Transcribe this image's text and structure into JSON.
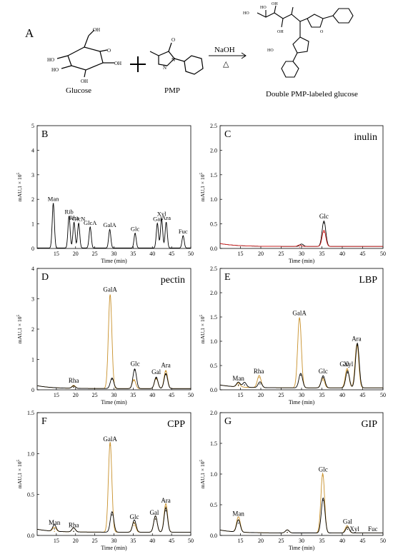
{
  "reaction": {
    "panel_letter": "A",
    "reactant1_label": "Glucose",
    "reactant2_label": "PMP",
    "condition": "NaOH",
    "condition_symbol": "△",
    "product_label": "Double PMP-labeled glucose",
    "oh_label": "OH",
    "ho_label": "HO",
    "o_label": "O",
    "n_label": "N"
  },
  "colors": {
    "axis": "#000000",
    "standard": "#000000",
    "series_black": "#000000",
    "series_red": "#d42020",
    "series_orange": "#c8902a"
  },
  "chart_data": [
    {
      "id": "B",
      "type": "line",
      "title": "",
      "letter": "B",
      "xlabel": "Time (min)",
      "ylabel": "mAU,1 × 10",
      "ylabel_exp": "5",
      "xlim": [
        10,
        50
      ],
      "ylim": [
        0,
        5
      ],
      "xticks": [
        "15",
        "20",
        "25",
        "30",
        "35",
        "40",
        "45",
        "50"
      ],
      "yticks": [
        "0",
        "1",
        "2",
        "3",
        "4",
        "5"
      ],
      "peaks": [
        {
          "label": "Man",
          "x": 14.2,
          "y": 1.82
        },
        {
          "label": "Rib",
          "x": 18.3,
          "y": 1.3
        },
        {
          "label": "Rha",
          "x": 19.6,
          "y": 1.05
        },
        {
          "label": "GlcN",
          "x": 20.8,
          "y": 1.0
        },
        {
          "label": "GlcA",
          "x": 23.8,
          "y": 0.85
        },
        {
          "label": "GalA",
          "x": 28.9,
          "y": 0.75
        },
        {
          "label": "Glc",
          "x": 35.5,
          "y": 0.6
        },
        {
          "label": "Gal",
          "x": 41.3,
          "y": 1.0
        },
        {
          "label": "Xyl",
          "x": 42.4,
          "y": 1.2
        },
        {
          "label": "Ara",
          "x": 43.6,
          "y": 1.05
        },
        {
          "label": "Fuc",
          "x": 48.0,
          "y": 0.5
        }
      ]
    },
    {
      "id": "C",
      "type": "line",
      "title": "inulin",
      "letter": "C",
      "xlabel": "Time (min)",
      "ylabel": "mAU,1 × 10",
      "ylabel_exp": "5",
      "xlim": [
        10,
        50
      ],
      "ylim": [
        0,
        2.5
      ],
      "xticks": [
        "15",
        "20",
        "25",
        "30",
        "35",
        "40",
        "45",
        "50"
      ],
      "yticks": [
        "0.0",
        "0.5",
        "1.0",
        "1.5",
        "2.0",
        "2.5"
      ],
      "annotations": [
        "Glc"
      ],
      "series": [
        {
          "color": "series_black",
          "peaks": [
            {
              "x": 35.5,
              "y": 0.52
            },
            {
              "x": 30.0,
              "y": 0.05
            }
          ]
        },
        {
          "color": "series_red",
          "peaks": [
            {
              "x": 35.5,
              "y": 0.33
            },
            {
              "x": 29.5,
              "y": 0.03
            }
          ]
        }
      ]
    },
    {
      "id": "D",
      "type": "line",
      "title": "pectin",
      "letter": "D",
      "xlabel": "Time (min)",
      "ylabel": "mAU,1 × 10",
      "ylabel_exp": "5",
      "xlim": [
        10,
        50
      ],
      "ylim": [
        0,
        4
      ],
      "xticks": [
        "15",
        "20",
        "25",
        "30",
        "35",
        "40",
        "45",
        "50"
      ],
      "yticks": [
        "0",
        "1",
        "2",
        "3",
        "4"
      ],
      "annotations": [
        {
          "label": "Rha",
          "x": 19.5
        },
        {
          "label": "GalA",
          "x": 29.0
        },
        {
          "label": "Glc",
          "x": 35.5
        },
        {
          "label": "Gal",
          "x": 41.0
        },
        {
          "label": "Ara",
          "x": 43.5
        }
      ],
      "series": [
        {
          "color": "series_orange",
          "peaks": [
            {
              "x": 29.0,
              "y": 3.1
            },
            {
              "x": 35.2,
              "y": 0.3
            },
            {
              "x": 41.0,
              "y": 0.35
            },
            {
              "x": 43.5,
              "y": 0.6
            },
            {
              "x": 19.5,
              "y": 0.1
            }
          ]
        },
        {
          "color": "series_black",
          "peaks": [
            {
              "x": 29.5,
              "y": 0.35
            },
            {
              "x": 35.4,
              "y": 0.65
            },
            {
              "x": 41.0,
              "y": 0.38
            },
            {
              "x": 43.5,
              "y": 0.5
            },
            {
              "x": 19.5,
              "y": 0.08
            }
          ]
        }
      ]
    },
    {
      "id": "E",
      "type": "line",
      "title": "LBP",
      "letter": "E",
      "xlabel": "Time (min)",
      "ylabel": "mAU,1 × 10",
      "ylabel_exp": "5",
      "xlim": [
        10,
        50
      ],
      "ylim": [
        0,
        2.5
      ],
      "xticks": [
        "15",
        "20",
        "25",
        "30",
        "35",
        "40",
        "45",
        "50"
      ],
      "yticks": [
        "0.0",
        "0.5",
        "1.0",
        "1.5",
        "2.0",
        "2.5"
      ],
      "annotations": [
        {
          "label": "Man",
          "x": 14.5
        },
        {
          "label": "Rha",
          "x": 19.5
        },
        {
          "label": "GalA",
          "x": 29.5
        },
        {
          "label": "Glc",
          "x": 35.3
        },
        {
          "label": "Gal",
          "x": 40.5
        },
        {
          "label": "Xyl",
          "x": 41.5
        },
        {
          "label": "Ara",
          "x": 43.5
        }
      ],
      "series": [
        {
          "color": "series_orange",
          "peaks": [
            {
              "x": 29.5,
              "y": 1.45
            },
            {
              "x": 19.6,
              "y": 0.25
            },
            {
              "x": 14.5,
              "y": 0.08
            },
            {
              "x": 35.2,
              "y": 0.2
            },
            {
              "x": 41.2,
              "y": 0.4
            },
            {
              "x": 43.6,
              "y": 0.9
            }
          ]
        },
        {
          "color": "series_black",
          "peaks": [
            {
              "x": 29.8,
              "y": 0.3
            },
            {
              "x": 19.8,
              "y": 0.12
            },
            {
              "x": 14.5,
              "y": 0.1
            },
            {
              "x": 16.0,
              "y": 0.1
            },
            {
              "x": 35.3,
              "y": 0.25
            },
            {
              "x": 41.3,
              "y": 0.35
            },
            {
              "x": 43.7,
              "y": 0.92
            }
          ]
        }
      ]
    },
    {
      "id": "F",
      "type": "line",
      "title": "CPP",
      "letter": "F",
      "xlabel": "Time (min)",
      "ylabel": "mAU,1 × 10",
      "ylabel_exp": "5",
      "xlim": [
        10,
        50
      ],
      "ylim": [
        0,
        1.5
      ],
      "xticks": [
        "15",
        "20",
        "25",
        "30",
        "35",
        "40",
        "45",
        "50"
      ],
      "yticks": [
        "0.0",
        "0.5",
        "1.0",
        "1.5"
      ],
      "annotations": [
        {
          "label": "Man",
          "x": 14.5
        },
        {
          "label": "Rha",
          "x": 19.5
        },
        {
          "label": "GalA",
          "x": 29.0
        },
        {
          "label": "Glc",
          "x": 35.3
        },
        {
          "label": "Gal",
          "x": 40.5
        },
        {
          "label": "Ara",
          "x": 43.5
        }
      ],
      "series": [
        {
          "color": "series_orange",
          "peaks": [
            {
              "x": 29.0,
              "y": 1.1
            },
            {
              "x": 14.5,
              "y": 0.05
            },
            {
              "x": 19.5,
              "y": 0.05
            },
            {
              "x": 35.2,
              "y": 0.12
            },
            {
              "x": 40.8,
              "y": 0.2
            },
            {
              "x": 43.5,
              "y": 0.35
            }
          ]
        },
        {
          "color": "series_black",
          "peaks": [
            {
              "x": 29.5,
              "y": 0.25
            },
            {
              "x": 14.5,
              "y": 0.08
            },
            {
              "x": 19.5,
              "y": 0.05
            },
            {
              "x": 35.3,
              "y": 0.15
            },
            {
              "x": 40.8,
              "y": 0.2
            },
            {
              "x": 43.5,
              "y": 0.3
            }
          ]
        }
      ]
    },
    {
      "id": "G",
      "type": "line",
      "title": "GIP",
      "letter": "G",
      "xlabel": "Time (min)",
      "ylabel": "mAU,1 × 10",
      "ylabel_exp": "5",
      "xlim": [
        10,
        50
      ],
      "ylim": [
        0,
        2.0
      ],
      "xticks": [
        "15",
        "20",
        "25",
        "30",
        "35",
        "40",
        "45",
        "50"
      ],
      "yticks": [
        "0.0",
        "0.5",
        "1.0",
        "1.5",
        "2.0"
      ],
      "annotations": [
        {
          "label": "Man",
          "x": 14.5
        },
        {
          "label": "Glc",
          "x": 35.3
        },
        {
          "label": "Gal",
          "x": 41.3
        },
        {
          "label": "Xyl",
          "x": 43.0
        },
        {
          "label": "Fuc",
          "x": 47.5
        }
      ],
      "series": [
        {
          "color": "series_orange",
          "peaks": [
            {
              "x": 14.5,
              "y": 0.25
            },
            {
              "x": 35.2,
              "y": 0.97
            },
            {
              "x": 26.5,
              "y": 0.05
            },
            {
              "x": 41.2,
              "y": 0.12
            }
          ]
        },
        {
          "color": "series_black",
          "peaks": [
            {
              "x": 14.5,
              "y": 0.2
            },
            {
              "x": 35.3,
              "y": 0.57
            },
            {
              "x": 26.5,
              "y": 0.05
            },
            {
              "x": 41.3,
              "y": 0.1
            }
          ]
        }
      ]
    }
  ]
}
